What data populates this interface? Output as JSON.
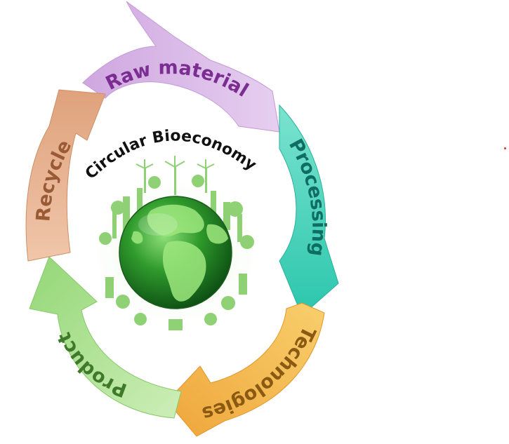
{
  "diagram": {
    "center_title": "Circular Bioeconomy",
    "stages": [
      {
        "id": "raw-material",
        "label": "Raw material",
        "fill": "#d8b4e6",
        "text_color": "#7b2d92"
      },
      {
        "id": "processing",
        "label": "Processing",
        "fill": "#4fd6c0",
        "text_color": "#0f6e63"
      },
      {
        "id": "technologies",
        "label": "Technologies",
        "fill": "#f3b64a",
        "text_color": "#8a5a12"
      },
      {
        "id": "product",
        "label": "Product",
        "fill": "#a9e08e",
        "text_color": "#3f7a2a"
      },
      {
        "id": "recycle",
        "label": "Recycle",
        "fill": "#e9b08e",
        "text_color": "#9a5a36"
      }
    ]
  }
}
